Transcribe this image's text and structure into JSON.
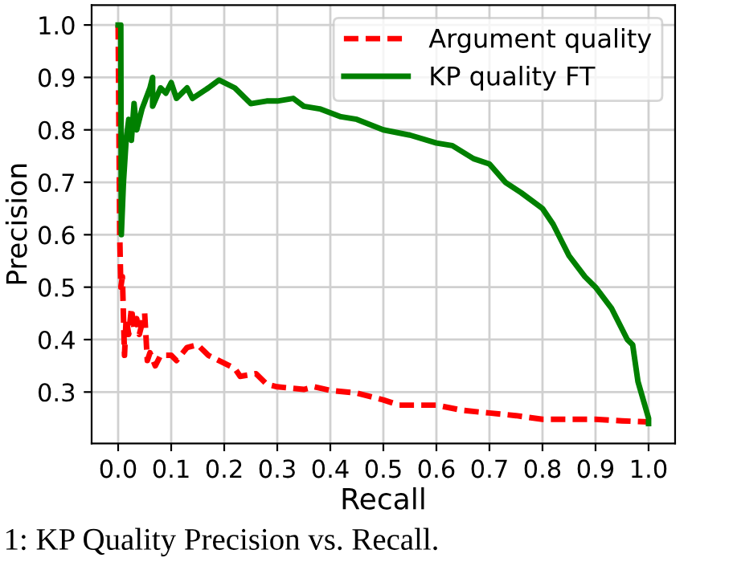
{
  "chart_data": {
    "type": "line",
    "xlabel": "Recall",
    "ylabel": "Precision",
    "xlim": [
      -0.05,
      1.05
    ],
    "ylim": [
      0.202,
      1.038
    ],
    "xticks": [
      {
        "value": 0,
        "label": "0.0"
      },
      0.1,
      0.2,
      0.3,
      0.4,
      0.5,
      0.6,
      0.7,
      0.8,
      0.9,
      {
        "value": 1,
        "label": "1.0"
      }
    ],
    "yticks": [
      0.3,
      0.4,
      0.5,
      0.6,
      0.7,
      0.8,
      0.9,
      {
        "value": 1,
        "label": "1.0"
      }
    ],
    "grid": true,
    "legend": "top right",
    "annotations": [
      "1: KP Quality Precision vs. Recall."
    ],
    "series": [
      {
        "name": "Argument quality",
        "color": "#ff0000",
        "line_style": "dashed",
        "x": [
          0.0,
          0.003,
          0.005,
          0.008,
          0.012,
          0.015,
          0.02,
          0.025,
          0.03,
          0.035,
          0.04,
          0.05,
          0.055,
          0.06,
          0.07,
          0.08,
          0.1,
          0.11,
          0.13,
          0.15,
          0.17,
          0.2,
          0.22,
          0.23,
          0.26,
          0.28,
          0.3,
          0.35,
          0.37,
          0.4,
          0.45,
          0.5,
          0.53,
          0.6,
          0.65,
          0.7,
          0.75,
          0.8,
          0.9,
          0.95,
          1.0
        ],
        "values": [
          1.0,
          0.6,
          0.5,
          0.52,
          0.37,
          0.44,
          0.41,
          0.46,
          0.42,
          0.44,
          0.41,
          0.45,
          0.36,
          0.375,
          0.35,
          0.37,
          0.37,
          0.36,
          0.385,
          0.39,
          0.37,
          0.355,
          0.345,
          0.33,
          0.335,
          0.315,
          0.31,
          0.305,
          0.31,
          0.303,
          0.298,
          0.285,
          0.275,
          0.275,
          0.265,
          0.26,
          0.255,
          0.248,
          0.248,
          0.245,
          0.243
        ]
      },
      {
        "name": "KP quality FT",
        "color": "#008000",
        "line_style": "solid",
        "x": [
          0.0,
          0.005,
          0.006,
          0.01,
          0.015,
          0.02,
          0.025,
          0.03,
          0.035,
          0.045,
          0.06,
          0.065,
          0.065,
          0.08,
          0.09,
          0.1,
          0.11,
          0.13,
          0.14,
          0.17,
          0.19,
          0.22,
          0.25,
          0.28,
          0.3,
          0.33,
          0.35,
          0.38,
          0.42,
          0.45,
          0.5,
          0.55,
          0.6,
          0.63,
          0.67,
          0.7,
          0.73,
          0.76,
          0.8,
          0.82,
          0.85,
          0.88,
          0.9,
          0.93,
          0.96,
          0.97,
          0.98,
          1.0,
          1.0
        ],
        "values": [
          1.0,
          1.0,
          0.6,
          0.7,
          0.78,
          0.82,
          0.78,
          0.85,
          0.8,
          0.84,
          0.88,
          0.9,
          0.845,
          0.88,
          0.87,
          0.89,
          0.86,
          0.88,
          0.86,
          0.88,
          0.895,
          0.88,
          0.85,
          0.855,
          0.855,
          0.86,
          0.845,
          0.84,
          0.825,
          0.82,
          0.8,
          0.79,
          0.775,
          0.77,
          0.745,
          0.735,
          0.7,
          0.68,
          0.65,
          0.62,
          0.56,
          0.52,
          0.5,
          0.46,
          0.4,
          0.39,
          0.32,
          0.25,
          0.24
        ]
      }
    ]
  }
}
